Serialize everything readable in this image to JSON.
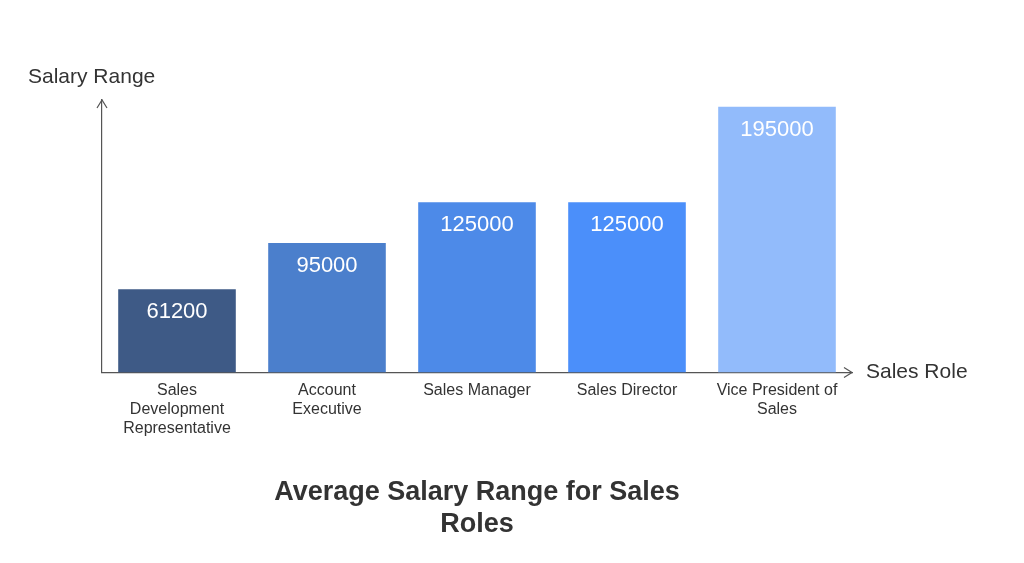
{
  "chart_data": {
    "type": "bar",
    "title": "Average Salary Range for Sales Roles",
    "x_label": "Sales Role",
    "y_label": "Salary Range",
    "categories": [
      "Sales Development Representative",
      "Account Executive",
      "Sales Manager",
      "Sales Director",
      "Vice President of Sales"
    ],
    "values": [
      61200,
      95000,
      125000,
      125000,
      195000
    ],
    "colors": [
      "#3e5a86",
      "#4b7fcc",
      "#4d8ae8",
      "#4b8ffa",
      "#92bbfb"
    ],
    "ylim": [
      0,
      200000
    ],
    "grid": false,
    "data_labels": true,
    "tick_labels": "x"
  }
}
